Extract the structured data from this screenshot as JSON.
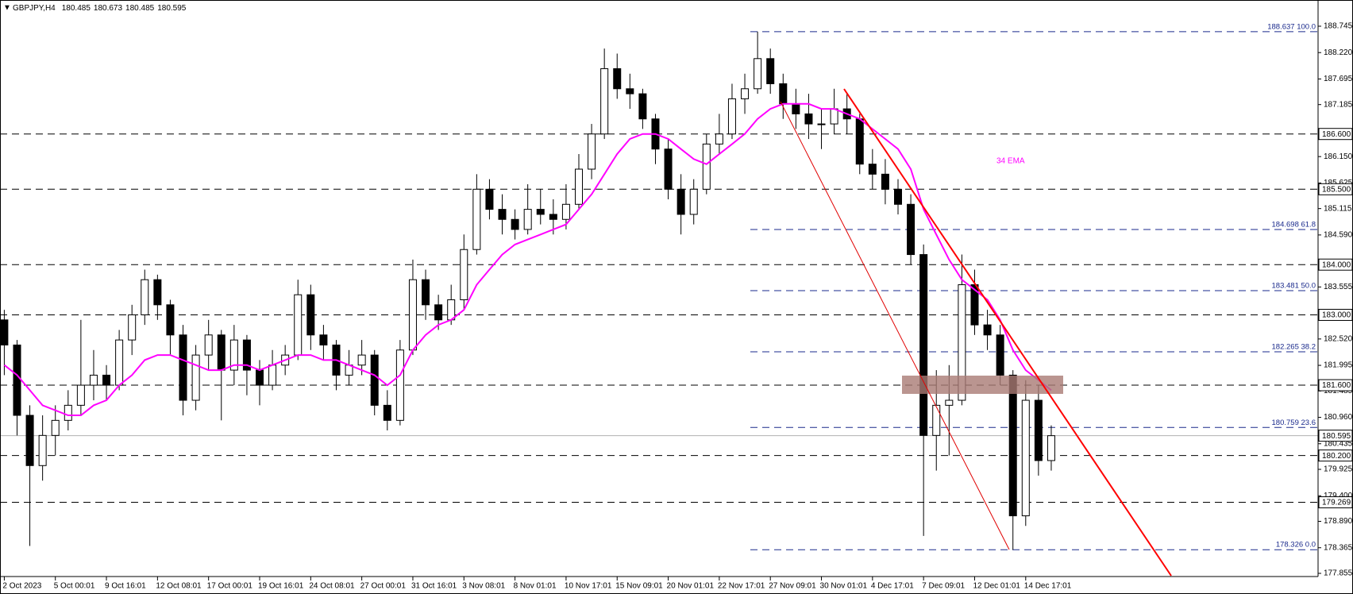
{
  "chart_data": {
    "type": "candlestick",
    "title": "GBPJPY,H4",
    "header_values": [
      180.485,
      180.673,
      180.485,
      180.595
    ],
    "categories": [
      "2 Oct 2023",
      null,
      null,
      null,
      "5 Oct 00:01",
      null,
      null,
      null,
      "9 Oct 16:01",
      null,
      null,
      null,
      "12 Oct 08:01",
      null,
      null,
      null,
      "17 Oct 00:01",
      null,
      null,
      null,
      "19 Oct 16:01",
      null,
      null,
      null,
      "24 Oct 08:01",
      null,
      null,
      null,
      "27 Oct 00:01",
      null,
      null,
      null,
      "31 Oct 16:01",
      null,
      null,
      null,
      "3 Nov 08:01",
      null,
      null,
      null,
      "8 Nov 01:01",
      null,
      null,
      null,
      "10 Nov 17:01",
      null,
      null,
      null,
      "15 Nov 09:01",
      null,
      null,
      null,
      "20 Nov 01:01",
      null,
      null,
      null,
      "22 Nov 17:01",
      null,
      null,
      null,
      "27 Nov 09:01",
      null,
      null,
      null,
      "30 Nov 01:01",
      null,
      null,
      null,
      "4 Dec 17:01",
      null,
      null,
      null,
      "7 Dec 09:01",
      null,
      null,
      null,
      "12 Dec 01:01",
      null,
      null,
      null,
      "14 Dec 17:01",
      null,
      null
    ],
    "open": [
      182.9,
      182.4,
      181.0,
      180.0,
      180.6,
      180.9,
      181.2,
      181.6,
      181.8,
      181.6,
      182.5,
      183.0,
      183.7,
      183.2,
      182.6,
      181.3,
      182.2,
      182.6,
      181.9,
      182.5,
      181.9,
      181.6,
      182.0,
      182.2,
      183.4,
      182.6,
      182.4,
      181.8,
      182.0,
      182.2,
      181.2,
      180.9,
      182.3,
      183.7,
      183.2,
      182.9,
      183.3,
      184.3,
      185.5,
      185.1,
      184.9,
      184.7,
      185.1,
      185.0,
      184.9,
      185.2,
      185.9,
      186.6,
      187.9,
      187.5,
      187.4,
      186.9,
      186.3,
      185.5,
      185.0,
      185.5,
      186.4,
      186.6,
      187.3,
      187.5,
      188.1,
      187.6,
      187.2,
      187.0,
      186.8,
      186.8,
      187.1,
      186.9,
      186.0,
      185.8,
      185.5,
      185.2,
      184.2,
      180.6,
      181.2,
      181.3,
      183.6,
      182.8,
      182.6,
      181.8,
      179.0,
      181.3,
      180.1
    ],
    "high": [
      183.1,
      182.5,
      181.2,
      181.0,
      181.2,
      181.5,
      182.9,
      182.3,
      182.0,
      182.7,
      183.2,
      183.9,
      183.8,
      183.3,
      182.8,
      182.4,
      182.9,
      182.7,
      182.8,
      182.6,
      182.1,
      182.3,
      182.4,
      183.7,
      183.6,
      182.8,
      182.5,
      182.3,
      182.5,
      182.3,
      181.5,
      182.5,
      184.1,
      183.9,
      183.4,
      183.6,
      184.6,
      185.8,
      185.7,
      185.4,
      185.1,
      185.6,
      185.5,
      185.3,
      185.6,
      186.2,
      186.8,
      188.3,
      188.2,
      187.8,
      187.5,
      187.0,
      186.5,
      185.8,
      185.7,
      186.6,
      187.0,
      187.6,
      187.8,
      188.637,
      188.3,
      187.8,
      187.5,
      187.4,
      187.1,
      187.5,
      187.4,
      187.0,
      186.3,
      186.1,
      185.7,
      185.4,
      184.4,
      181.9,
      182.0,
      184.2,
      183.9,
      183.1,
      182.8,
      181.9,
      181.7,
      181.6,
      180.8
    ],
    "low": [
      181.8,
      180.6,
      178.4,
      179.7,
      180.2,
      180.7,
      181.0,
      181.3,
      181.3,
      181.5,
      182.2,
      182.8,
      182.9,
      182.2,
      181.0,
      181.1,
      181.9,
      180.9,
      181.6,
      181.4,
      181.2,
      181.5,
      181.8,
      182.1,
      182.3,
      182.1,
      181.5,
      181.6,
      181.8,
      181.0,
      180.7,
      180.8,
      182.2,
      182.9,
      182.7,
      182.8,
      183.1,
      184.2,
      184.9,
      184.6,
      184.5,
      184.6,
      184.8,
      184.6,
      184.7,
      185.1,
      185.7,
      186.5,
      187.3,
      187.1,
      186.7,
      186.0,
      185.3,
      184.6,
      184.8,
      185.4,
      186.2,
      186.5,
      187.0,
      187.4,
      187.4,
      186.9,
      186.7,
      186.5,
      186.3,
      186.6,
      186.6,
      185.8,
      185.5,
      185.2,
      185.0,
      184.0,
      178.6,
      179.9,
      180.2,
      181.2,
      182.6,
      182.3,
      181.6,
      178.326,
      178.8,
      179.8,
      179.9
    ],
    "close": [
      182.4,
      181.0,
      180.0,
      180.6,
      180.9,
      181.2,
      181.6,
      181.8,
      181.6,
      182.5,
      183.0,
      183.7,
      183.2,
      182.6,
      181.3,
      182.2,
      182.6,
      181.9,
      182.5,
      181.9,
      181.6,
      182.0,
      182.2,
      183.4,
      182.6,
      182.4,
      181.8,
      182.0,
      182.2,
      181.2,
      180.9,
      182.3,
      183.7,
      183.2,
      182.9,
      183.3,
      184.3,
      185.5,
      185.1,
      184.9,
      184.7,
      185.1,
      185.0,
      184.9,
      185.2,
      185.9,
      186.6,
      187.9,
      187.5,
      187.4,
      186.9,
      186.3,
      185.5,
      185.0,
      185.5,
      186.4,
      186.6,
      187.3,
      187.5,
      188.1,
      187.6,
      187.2,
      187.0,
      186.8,
      186.8,
      187.1,
      186.9,
      186.0,
      185.8,
      185.5,
      185.2,
      184.2,
      180.6,
      181.2,
      181.3,
      183.6,
      182.8,
      182.6,
      181.8,
      179.0,
      181.3,
      180.1,
      180.595
    ],
    "ema": {
      "name": "34 EMA",
      "color": "#ff00ff",
      "values": [
        182.0,
        181.8,
        181.5,
        181.2,
        181.1,
        181.0,
        181.0,
        181.2,
        181.3,
        181.6,
        181.8,
        182.1,
        182.2,
        182.2,
        182.1,
        182.0,
        181.9,
        181.9,
        182.0,
        182.0,
        181.9,
        182.0,
        182.1,
        182.2,
        182.2,
        182.1,
        182.1,
        182.0,
        181.9,
        181.8,
        181.6,
        181.8,
        182.3,
        182.6,
        182.8,
        182.9,
        183.1,
        183.6,
        183.9,
        184.2,
        184.4,
        184.5,
        184.6,
        184.7,
        184.8,
        185.1,
        185.4,
        185.8,
        186.2,
        186.5,
        186.6,
        186.6,
        186.5,
        186.3,
        186.1,
        186.0,
        186.2,
        186.4,
        186.6,
        186.9,
        187.1,
        187.2,
        187.2,
        187.2,
        187.1,
        187.1,
        187.0,
        186.9,
        186.7,
        186.5,
        186.3,
        185.9,
        185.1,
        184.6,
        184.1,
        183.7,
        183.5,
        183.3,
        182.9,
        182.3,
        181.9,
        181.7,
        181.5
      ]
    },
    "ylim": [
      177.855,
      188.745
    ],
    "yticks": [
      188.745,
      {
        "value": 188.22,
        "label": "188.220"
      },
      187.695,
      187.185,
      {
        "value": 186.15,
        "label": "186.150"
      },
      185.625,
      185.115,
      {
        "value": 184.59,
        "label": "184.590"
      },
      183.555,
      {
        "value": 182.52,
        "label": "182.520"
      },
      181.995,
      181.485,
      {
        "value": 180.96,
        "label": "180.960"
      },
      180.435,
      179.925,
      {
        "value": 179.4,
        "label": "179.400"
      },
      {
        "value": 178.89,
        "label": "178.890"
      },
      178.365,
      177.855
    ],
    "levels": [
      {
        "value": 186.6,
        "label": "186.600"
      },
      {
        "value": 185.5,
        "label": "185.500"
      },
      {
        "value": 184.0,
        "label": "184.000"
      },
      {
        "value": 183.0,
        "label": "183.000"
      },
      {
        "value": 181.6,
        "label": "181.600"
      },
      {
        "value": 180.2,
        "label": "180.200"
      },
      179.269
    ],
    "fib_levels": [
      {
        "value": 188.637,
        "label": "188.637 100.0"
      },
      {
        "value": 184.698,
        "label": "184.698 61.8"
      },
      {
        "value": 183.481,
        "label": "183.481 50.0"
      },
      {
        "value": 182.265,
        "label": "182.265 38.2"
      },
      {
        "value": 180.759,
        "label": "180.759 23.6"
      },
      {
        "value": 178.326,
        "label": "178.326 0.0"
      }
    ],
    "current_price": {
      "value": 180.595,
      "label": "180.595"
    }
  }
}
